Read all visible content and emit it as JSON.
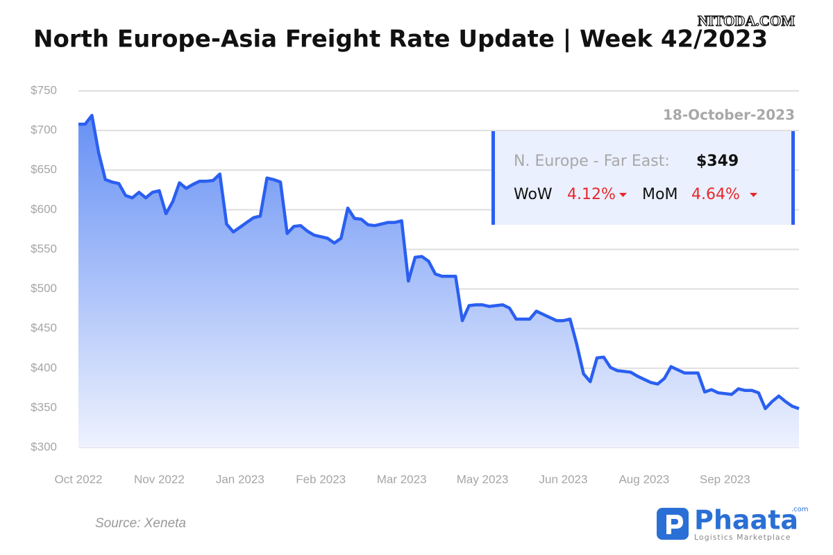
{
  "chart_data": {
    "type": "line",
    "title": "North Europe-Asia Freight Rate Update | Week 42/2023",
    "watermark": "NITODA.COM",
    "categories": [
      "Oct 2022",
      null,
      null,
      null,
      null,
      null,
      null,
      null,
      null,
      null,
      null,
      null,
      "Nov 2022",
      null,
      null,
      null,
      null,
      null,
      null,
      null,
      null,
      null,
      null,
      null,
      "Jan 2023",
      null,
      null,
      null,
      null,
      null,
      null,
      null,
      null,
      null,
      null,
      null,
      "Feb 2023",
      null,
      null,
      null,
      null,
      null,
      null,
      null,
      null,
      null,
      null,
      null,
      "Mar 2023",
      null,
      null,
      null,
      null,
      null,
      null,
      null,
      null,
      null,
      null,
      null,
      "May 2023",
      null,
      null,
      null,
      null,
      null,
      null,
      null,
      null,
      null,
      null,
      null,
      "Jun 2023",
      null,
      null,
      null,
      null,
      null,
      null,
      null,
      null,
      null,
      null,
      null,
      "Aug 2023",
      null,
      null,
      null,
      null,
      null,
      null,
      null,
      null,
      null,
      null,
      null,
      "Sep 2023",
      null,
      null,
      null,
      null,
      null,
      null,
      null,
      null,
      null,
      null,
      null
    ],
    "values": [
      708,
      708,
      719,
      672,
      638,
      635,
      633,
      618,
      615,
      622,
      615,
      622,
      624,
      595,
      610,
      634,
      627,
      632,
      636,
      636,
      637,
      645,
      582,
      572,
      578,
      584,
      590,
      592,
      640,
      638,
      635,
      570,
      579,
      580,
      573,
      568,
      566,
      564,
      558,
      564,
      602,
      589,
      588,
      581,
      580,
      582,
      584,
      584,
      586,
      510,
      540,
      541,
      535,
      519,
      516,
      516,
      516,
      460,
      479,
      480,
      480,
      478,
      479,
      480,
      476,
      462,
      462,
      462,
      472,
      468,
      464,
      460,
      460,
      462,
      430,
      393,
      383,
      413,
      414,
      401,
      397,
      396,
      395,
      390,
      386,
      382,
      380,
      387,
      402,
      398,
      394,
      394,
      394,
      370,
      373,
      369,
      368,
      367,
      374,
      372,
      372,
      369,
      349,
      358,
      365,
      358,
      352,
      349
    ],
    "color": "#2a5ff0",
    "ylim": [
      300,
      750
    ],
    "yticks": [
      {
        "value": 300,
        "label": "$300"
      },
      {
        "value": 350,
        "label": "$350"
      },
      {
        "value": 400,
        "label": "$400"
      },
      {
        "value": 450,
        "label": "$450"
      },
      {
        "value": 500,
        "label": "$500"
      },
      {
        "value": 550,
        "label": "$550"
      },
      {
        "value": 600,
        "label": "$600"
      },
      {
        "value": 650,
        "label": "$650"
      },
      {
        "value": 700,
        "label": "$700"
      },
      {
        "value": 750,
        "label": "$750"
      }
    ],
    "grid": true,
    "annotation": {
      "date": "18-October-2023",
      "label": "N. Europe - Far East:",
      "value": "$349",
      "wow_label": "WoW",
      "wow": "4.12%",
      "mom_label": "MoM",
      "mom": "4.64%"
    },
    "source": "Source: Xeneta",
    "logo": {
      "name": "Phaata",
      "suffix": ".com",
      "tagline": "Logistics Marketplace"
    }
  }
}
